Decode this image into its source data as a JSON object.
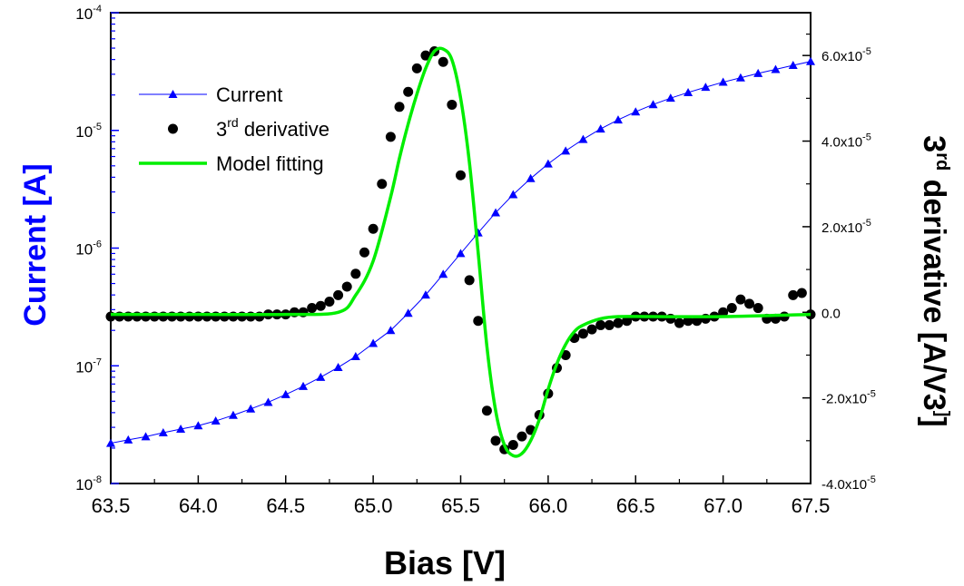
{
  "chart_data": {
    "type": "line",
    "xlabel": "Bias [V]",
    "ylabel_left": "Current [A]",
    "ylabel_right": "3rd derivative [A/V3]",
    "xlim": [
      63.5,
      67.5
    ],
    "xticks": [
      63.5,
      64.0,
      64.5,
      65.0,
      65.5,
      66.0,
      66.5,
      67.0,
      67.5
    ],
    "xtick_labels": [
      "63.5",
      "64.0",
      "64.5",
      "65.0",
      "65.5",
      "66.0",
      "66.5",
      "67.0",
      "67.5"
    ],
    "y_left": {
      "scale": "log",
      "lim": [
        1e-08,
        0.0001
      ],
      "ticks": [
        {
          "base": "10",
          "exp": "-8"
        },
        {
          "base": "10",
          "exp": "-7"
        },
        {
          "base": "10",
          "exp": "-6"
        },
        {
          "base": "10",
          "exp": "-5"
        },
        {
          "base": "10",
          "exp": "-4"
        }
      ],
      "color": "#0000ff"
    },
    "y_right": {
      "scale": "linear",
      "lim": [
        -4e-05,
        7e-05
      ],
      "ticks": [
        {
          "value": -4e-05,
          "mant": "-4.0x10",
          "exp": "-5"
        },
        {
          "value": -2e-05,
          "mant": "-2.0x10",
          "exp": "-5"
        },
        {
          "value": 0,
          "mant": "0.0",
          "exp": ""
        },
        {
          "value": 2e-05,
          "mant": "2.0x10",
          "exp": "-5"
        },
        {
          "value": 4e-05,
          "mant": "4.0x10",
          "exp": "-5"
        },
        {
          "value": 6e-05,
          "mant": "6.0x10",
          "exp": "-5"
        }
      ]
    },
    "legend": {
      "placement": "top-left",
      "entries": [
        {
          "label": "Current",
          "sup": "",
          "rest": "",
          "color": "#0000ff",
          "marker": "triangle"
        },
        {
          "label": "3",
          "sup": "rd",
          "rest": " derivative",
          "color": "#000000",
          "marker": "circle"
        },
        {
          "label": "Model fitting",
          "sup": "",
          "rest": "",
          "color": "#00ee00",
          "marker": "line"
        }
      ]
    },
    "series": [
      {
        "name": "Current",
        "axis": "left",
        "color": "#0000ff",
        "marker": "triangle",
        "x": [
          63.5,
          63.6,
          63.7,
          63.8,
          63.9,
          64.0,
          64.1,
          64.2,
          64.3,
          64.4,
          64.5,
          64.6,
          64.7,
          64.8,
          64.9,
          65.0,
          65.1,
          65.2,
          65.3,
          65.4,
          65.5,
          65.6,
          65.7,
          65.8,
          65.9,
          66.0,
          66.1,
          66.2,
          66.3,
          66.4,
          66.5,
          66.6,
          66.7,
          66.8,
          66.9,
          67.0,
          67.1,
          67.2,
          67.3,
          67.4,
          67.5
        ],
        "y": [
          2.2e-08,
          2.35e-08,
          2.5e-08,
          2.7e-08,
          2.9e-08,
          3.1e-08,
          3.4e-08,
          3.8e-08,
          4.3e-08,
          4.9e-08,
          5.7e-08,
          6.7e-08,
          8e-08,
          9.7e-08,
          1.2e-07,
          1.55e-07,
          2e-07,
          2.8e-07,
          4e-07,
          6e-07,
          9e-07,
          1.35e-06,
          2e-06,
          2.85e-06,
          3.9e-06,
          5.2e-06,
          6.7e-06,
          8.4e-06,
          1.03e-05,
          1.23e-05,
          1.44e-05,
          1.66e-05,
          1.88e-05,
          2.1e-05,
          2.33e-05,
          2.57e-05,
          2.8e-05,
          3.05e-05,
          3.3e-05,
          3.57e-05,
          3.85e-05
        ]
      },
      {
        "name": "3rd derivative",
        "axis": "right",
        "color": "#000000",
        "marker": "circle",
        "x": [
          63.5,
          63.55,
          63.6,
          63.65,
          63.7,
          63.75,
          63.8,
          63.85,
          63.9,
          63.95,
          64.0,
          64.05,
          64.1,
          64.15,
          64.2,
          64.25,
          64.3,
          64.35,
          64.4,
          64.45,
          64.5,
          64.55,
          64.6,
          64.65,
          64.7,
          64.75,
          64.8,
          64.85,
          64.9,
          64.95,
          65.0,
          65.05,
          65.1,
          65.15,
          65.2,
          65.25,
          65.3,
          65.35,
          65.4,
          65.45,
          65.5,
          65.55,
          65.6,
          65.65,
          65.7,
          65.75,
          65.8,
          65.85,
          65.9,
          65.95,
          66.0,
          66.05,
          66.1,
          66.15,
          66.2,
          66.25,
          66.3,
          66.35,
          66.4,
          66.45,
          66.5,
          66.55,
          66.6,
          66.65,
          66.7,
          66.75,
          66.8,
          66.85,
          66.9,
          66.95,
          67.0,
          67.05,
          67.1,
          67.15,
          67.2,
          67.25,
          67.3,
          67.35,
          67.4,
          67.45,
          67.5
        ],
        "y": [
          -1e-06,
          -1e-06,
          -1e-06,
          -1e-06,
          -1e-06,
          -1e-06,
          -1e-06,
          -1e-06,
          -1e-06,
          -1e-06,
          -1e-06,
          -1e-06,
          -1e-06,
          -1e-06,
          -1e-06,
          -1e-06,
          -1e-06,
          -1e-06,
          -5e-07,
          -5e-07,
          -5e-07,
          0,
          0,
          1e-06,
          1.5e-06,
          2.5e-06,
          4e-06,
          6e-06,
          9e-06,
          1.4e-05,
          1.95e-05,
          3e-05,
          4.1e-05,
          4.8e-05,
          5.15e-05,
          5.7e-05,
          6e-05,
          6.1e-05,
          5.85e-05,
          4.85e-05,
          3.2e-05,
          7.5e-06,
          -2e-06,
          -2.3e-05,
          -3e-05,
          -3.2e-05,
          -3.1e-05,
          -2.9e-05,
          -2.75e-05,
          -2.4e-05,
          -1.9e-05,
          -1.3e-05,
          -1e-05,
          -6e-06,
          -5e-06,
          -4e-06,
          -3e-06,
          -3e-06,
          -2.5e-06,
          -2e-06,
          -1e-06,
          -1e-06,
          -1e-06,
          -1e-06,
          -1.5e-06,
          -2.5e-06,
          -2e-06,
          -2e-06,
          -1.5e-06,
          -1e-06,
          0,
          1e-06,
          3e-06,
          2e-06,
          1e-06,
          -1.5e-06,
          -1.5e-06,
          -1e-06,
          4e-06,
          4.5e-06,
          -5e-07
        ]
      },
      {
        "name": "Model fitting",
        "axis": "right",
        "color": "#00ee00",
        "marker": "line",
        "x": [
          63.5,
          64.0,
          64.5,
          64.8,
          64.9,
          65.0,
          65.1,
          65.15,
          65.2,
          65.25,
          65.3,
          65.35,
          65.4,
          65.45,
          65.5,
          65.55,
          65.6,
          65.65,
          65.7,
          65.75,
          65.8,
          65.85,
          65.9,
          65.95,
          66.0,
          66.05,
          66.1,
          66.15,
          66.2,
          66.3,
          66.4,
          66.6,
          67.0,
          67.5
        ],
        "y": [
          -5e-07,
          -5e-07,
          -5e-07,
          0,
          4e-06,
          1.2e-05,
          2.7e-05,
          3.6e-05,
          4.4e-05,
          5.1e-05,
          5.7e-05,
          6.1e-05,
          6.15e-05,
          5.9e-05,
          5e-05,
          3.5e-05,
          1.4e-05,
          -8e-06,
          -2.3e-05,
          -3.1e-05,
          -3.35e-05,
          -3.3e-05,
          -3e-05,
          -2.5e-05,
          -1.8e-05,
          -1.2e-05,
          -7.5e-06,
          -4.5e-06,
          -3e-06,
          -1.5e-06,
          -1e-06,
          -1e-06,
          -1e-06,
          -5e-07
        ]
      }
    ]
  }
}
